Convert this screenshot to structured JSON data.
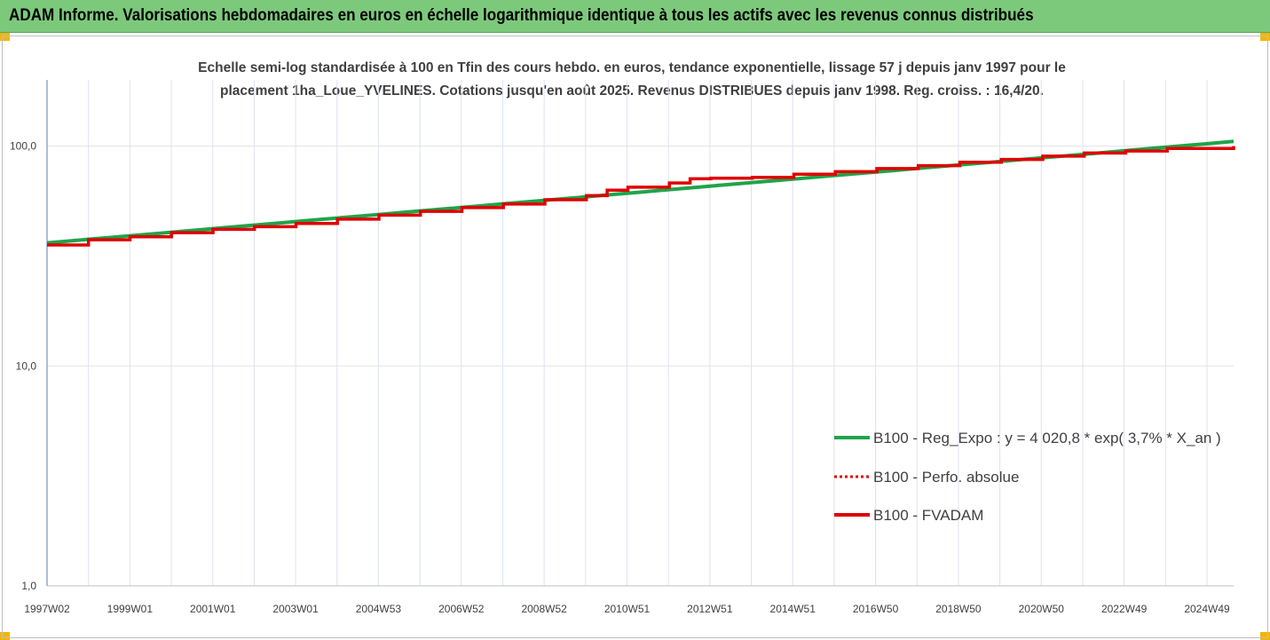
{
  "header": {
    "title": "ADAM Informe. Valorisations hebdomadaires en euros en échelle logarithmique identique à tous les actifs avec les revenus connus distribués"
  },
  "chart_data": {
    "type": "line",
    "title_lines": [
      "Echelle semi-log standardisée à 100 en Tfin des cours hebdo. en euros, tendance exponentielle, lissage 57 j depuis janv 1997 pour le",
      "placement 1ha_Loue_YVELINES. Cotations jusqu'en août 2025. Revenus DISTRIBUES depuis janv 1998. Reg. croiss. : 16,4/20."
    ],
    "y_scale": "log",
    "ylim": [
      1,
      200
    ],
    "y_ticks": [
      "1,0",
      "10,0",
      "100,0"
    ],
    "x_tick_labels": [
      "1997W02",
      "1999W01",
      "2001W01",
      "2003W01",
      "2004W53",
      "2006W52",
      "2008W52",
      "2010W51",
      "2012W51",
      "2014W51",
      "2016W50",
      "2018W50",
      "2020W50",
      "2022W49",
      "2024W49"
    ],
    "x_range_years": [
      1997.0,
      2025.6
    ],
    "grid": "vertical",
    "legend_position": "bottom-right",
    "series": [
      {
        "name": "B100 - Reg_Expo : y = 4 020,8 * exp( 3,7% *  X_an )",
        "color": "#1fa44a",
        "style": "solid",
        "points": [
          [
            1997.0,
            36.3
          ],
          [
            2025.6,
            105.0
          ]
        ]
      },
      {
        "name": "B100 - Perfo. absolue",
        "color": "#e00000",
        "style": "dotted",
        "points": []
      },
      {
        "name": "B100 - FVADAM",
        "color": "#e00000",
        "style": "solid",
        "points": [
          [
            1997.0,
            35.5
          ],
          [
            1998.0,
            37.5
          ],
          [
            1999.0,
            38.7
          ],
          [
            2000.0,
            40.4
          ],
          [
            2001.0,
            41.8
          ],
          [
            2002.0,
            43.0
          ],
          [
            2003.0,
            44.5
          ],
          [
            2004.0,
            46.5
          ],
          [
            2005.0,
            48.5
          ],
          [
            2006.0,
            50.5
          ],
          [
            2007.0,
            52.5
          ],
          [
            2008.0,
            54.5
          ],
          [
            2009.0,
            57.0
          ],
          [
            2010.0,
            59.5
          ],
          [
            2010.5,
            63.0
          ],
          [
            2011.0,
            65.0
          ],
          [
            2012.0,
            68.0
          ],
          [
            2012.5,
            71.0
          ],
          [
            2013.0,
            71.5
          ],
          [
            2014.0,
            72.0
          ],
          [
            2015.0,
            74.5
          ],
          [
            2016.0,
            76.5
          ],
          [
            2017.0,
            79.0
          ],
          [
            2018.0,
            81.5
          ],
          [
            2019.0,
            84.5
          ],
          [
            2020.0,
            87.0
          ],
          [
            2021.0,
            90.0
          ],
          [
            2022.0,
            93.0
          ],
          [
            2023.0,
            95.0
          ],
          [
            2024.0,
            97.5
          ],
          [
            2025.6,
            100.0
          ]
        ]
      }
    ]
  }
}
